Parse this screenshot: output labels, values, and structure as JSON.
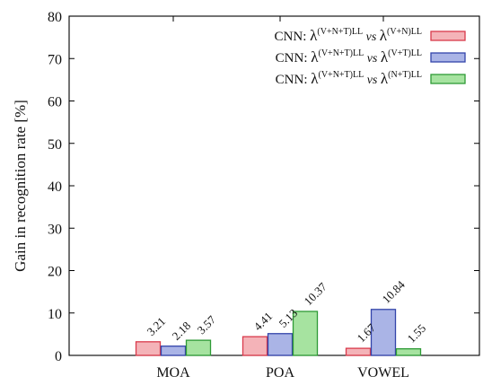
{
  "chart_data": {
    "type": "bar",
    "ylabel": "Gain in recognition rate [%]",
    "ylim": [
      0,
      80
    ],
    "yticks": [
      0,
      10,
      20,
      30,
      40,
      50,
      60,
      70,
      80
    ],
    "grid": false,
    "legend_position": "top-right",
    "categories": [
      "MOA",
      "POA",
      "VOWEL"
    ],
    "series": [
      {
        "name": "CNN: λ^(V+N+T)LL vs λ^(V+N)LL",
        "legend": {
          "prefix": "CNN: ",
          "a_sup": "(V+N+T)LL",
          "vs": "vs",
          "b_sup": "(V+N)LL"
        },
        "values": [
          3.21,
          4.41,
          1.67
        ],
        "labels": [
          "3.21",
          "4.41",
          "1.67"
        ],
        "fill": "#f4b3b8",
        "stroke": "#d93a4b"
      },
      {
        "name": "CNN: λ^(V+N+T)LL vs λ^(V+T)LL",
        "legend": {
          "prefix": "CNN: ",
          "a_sup": "(V+N+T)LL",
          "vs": "vs",
          "b_sup": "(V+T)LL"
        },
        "values": [
          2.18,
          5.13,
          10.84
        ],
        "labels": [
          "2.18",
          "5.13",
          "10.84"
        ],
        "fill": "#aab4e6",
        "stroke": "#3344aa"
      },
      {
        "name": "CNN: λ^(V+N+T)LL vs λ^(N+T)LL",
        "legend": {
          "prefix": "CNN: ",
          "a_sup": "(V+N+T)LL",
          "vs": "vs",
          "b_sup": "(N+T)LL"
        },
        "values": [
          3.57,
          10.37,
          1.55
        ],
        "labels": [
          "3.57",
          "10.37",
          "1.55"
        ],
        "fill": "#a6e3a0",
        "stroke": "#2e9a36"
      }
    ],
    "lambda_symbol": "λ"
  }
}
